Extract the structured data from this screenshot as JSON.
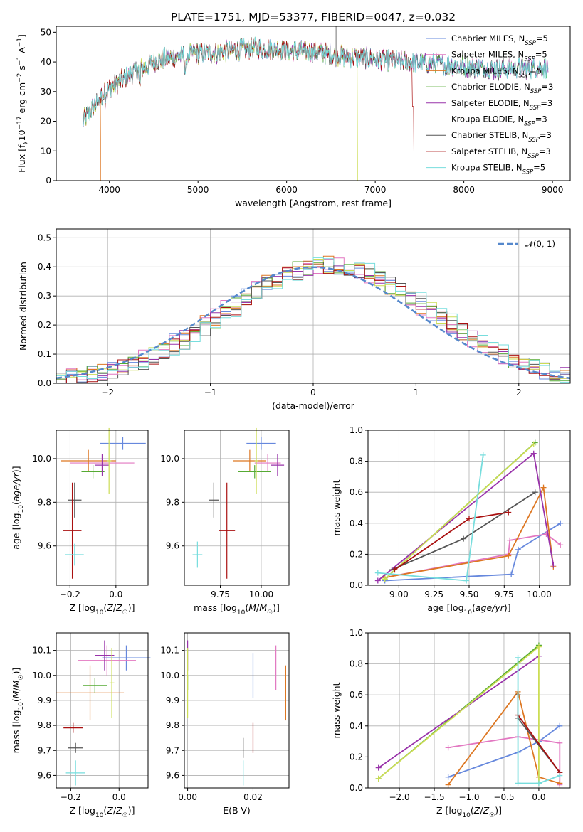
{
  "figure_title": "PLATE=1751, MJD=53377, FIBERID=0047, z=0.032",
  "colors": {
    "Chabrier MILES": "#6688dd",
    "Salpeter MILES": "#e277c1",
    "Kroupa MILES": "#dd7722",
    "Chabrier ELODIE": "#55aa33",
    "Salpeter ELODIE": "#9933aa",
    "Kroupa ELODIE": "#ccdd55",
    "Chabrier STELIB": "#555555",
    "Salpeter STELIB": "#aa1111",
    "Kroupa STELIB": "#77dddd"
  },
  "legend": {
    "spectrum": [
      {
        "model": "Chabrier MILES",
        "label": "Chabrier MILES, N",
        "sub": "SSP",
        "value": "=5"
      },
      {
        "model": "Salpeter MILES",
        "label": "Salpeter MILES, N",
        "sub": "SSP",
        "value": "=5"
      },
      {
        "model": "Kroupa MILES",
        "label": "Kroupa MILES, N",
        "sub": "SSP",
        "value": "=5"
      },
      {
        "model": "Chabrier ELODIE",
        "label": "Chabrier ELODIE, N",
        "sub": "SSP",
        "value": "=3"
      },
      {
        "model": "Salpeter ELODIE",
        "label": "Salpeter ELODIE, N",
        "sub": "SSP",
        "value": "=3"
      },
      {
        "model": "Kroupa ELODIE",
        "label": "Kroupa ELODIE, N",
        "sub": "SSP",
        "value": "=3"
      },
      {
        "model": "Chabrier STELIB",
        "label": "Chabrier STELIB, N",
        "sub": "SSP",
        "value": "=3"
      },
      {
        "model": "Salpeter STELIB",
        "label": "Salpeter STELIB, N",
        "sub": "SSP",
        "value": "=3"
      },
      {
        "model": "Kroupa STELIB",
        "label": "Kroupa STELIB, N",
        "sub": "SSP",
        "value": "=5"
      }
    ],
    "histogram": {
      "label": "𝒩(0, 1)",
      "color": "#5588cc"
    }
  },
  "chart_data": [
    {
      "panel": "spectrum",
      "type": "line",
      "xlabel": "wavelength [Angstrom, rest frame]",
      "ylabel": "Flux [f_λ 10^-17 erg cm^-2 s^-1 A^-1]",
      "xlim": [
        3400,
        9200
      ],
      "ylim": [
        0,
        52
      ],
      "xticks": [
        "4000",
        "5000",
        "6000",
        "7000",
        "8000",
        "9000"
      ],
      "yticks": [
        "0",
        "10",
        "20",
        "30",
        "40",
        "50"
      ],
      "grid": false,
      "legend_position": "upper right",
      "continuum_x": [
        3700,
        3800,
        3900,
        4000,
        4100,
        4200,
        4300,
        4400,
        4500,
        4600,
        4800,
        5000,
        5200,
        5400,
        5600,
        5800,
        6000,
        6200,
        6400,
        6600,
        6800,
        7000,
        7200,
        7400,
        7600,
        7800,
        8000,
        8200,
        8400,
        8600,
        8800,
        8950
      ],
      "continuum_y": [
        20,
        24,
        28,
        31,
        33,
        35,
        37,
        38,
        40,
        41,
        42,
        43,
        43,
        44,
        44.5,
        44.5,
        44,
        43.5,
        43,
        42,
        41.5,
        41,
        40.5,
        40,
        39.5,
        39,
        38.5,
        38,
        37.5,
        38,
        38,
        38
      ],
      "drops": [
        {
          "model": "Kroupa MILES",
          "x": 3900
        },
        {
          "model": "Kroupa ELODIE",
          "x": 6800
        },
        {
          "model": "Salpeter STELIB",
          "x": 7420
        }
      ],
      "annotation_spike_x": 6560
    },
    {
      "panel": "residual_histogram",
      "type": "line",
      "xlabel": "(data-model)/error",
      "ylabel": "Normed distribution",
      "xlim": [
        -2.5,
        2.5
      ],
      "ylim": [
        0,
        0.53
      ],
      "xticks": [
        "−2",
        "−1",
        "0",
        "1",
        "2"
      ],
      "yticks": [
        "0.0",
        "0.1",
        "0.2",
        "0.3",
        "0.4",
        "0.5"
      ],
      "grid": true,
      "legend_position": "upper right",
      "bin_width": 0.1,
      "series": [
        {
          "name": "𝒩(0, 1)",
          "mean": 0,
          "sigma": 1
        }
      ]
    },
    {
      "panel": "age_vs_Z",
      "type": "scatter",
      "xlabel": "Z [log10(Z/Z☉)]",
      "ylabel": "age [log10(age/yr)]",
      "xlim": [
        -0.26,
        0.14
      ],
      "ylim": [
        9.42,
        10.13
      ],
      "xticks": [
        "−0.2",
        "0.0"
      ],
      "yticks": [
        "9.6",
        "9.8",
        "10.0"
      ],
      "grid": true,
      "points": [
        {
          "model": "Chabrier MILES",
          "x": 0.03,
          "y": 10.07,
          "xerr": 0.1,
          "yerr": 0.03
        },
        {
          "model": "Salpeter MILES",
          "x": -0.06,
          "y": 9.98,
          "xerr": 0.14,
          "yerr": 0.04
        },
        {
          "model": "Kroupa MILES",
          "x": -0.12,
          "y": 9.99,
          "xerr": 0.12,
          "yerr": 0.05
        },
        {
          "model": "Chabrier ELODIE",
          "x": -0.1,
          "y": 9.94,
          "xerr": 0.05,
          "yerr": 0.03
        },
        {
          "model": "Salpeter ELODIE",
          "x": -0.06,
          "y": 9.97,
          "xerr": 0.03,
          "yerr": 0.05
        },
        {
          "model": "Kroupa ELODIE",
          "x": -0.03,
          "y": 9.99,
          "xerr": 0.01,
          "yerr": 0.15
        },
        {
          "model": "Chabrier STELIB",
          "x": -0.18,
          "y": 9.81,
          "xerr": 0.03,
          "yerr": 0.08
        },
        {
          "model": "Salpeter STELIB",
          "x": -0.19,
          "y": 9.67,
          "xerr": 0.04,
          "yerr": 0.22
        },
        {
          "model": "Kroupa STELIB",
          "x": -0.18,
          "y": 9.56,
          "xerr": 0.04,
          "yerr": 0.05
        }
      ]
    },
    {
      "panel": "age_vs_mass",
      "type": "scatter",
      "xlabel": "mass [log10(M/M☉)]",
      "ylabel": "",
      "xlim": [
        9.53,
        10.17
      ],
      "ylim": [
        9.42,
        10.13
      ],
      "xticks": [
        "9.75",
        "10.00"
      ],
      "yticks": [
        "9.6",
        "9.8",
        "10.0"
      ],
      "grid": true,
      "points": [
        {
          "model": "Chabrier MILES",
          "x": 10.0,
          "y": 10.07,
          "xerr": 0.09,
          "yerr": 0.03
        },
        {
          "model": "Salpeter MILES",
          "x": 10.04,
          "y": 9.98,
          "xerr": 0.08,
          "yerr": 0.04
        },
        {
          "model": "Kroupa MILES",
          "x": 9.93,
          "y": 9.99,
          "xerr": 0.1,
          "yerr": 0.05
        },
        {
          "model": "Chabrier ELODIE",
          "x": 9.96,
          "y": 9.94,
          "xerr": 0.1,
          "yerr": 0.03
        },
        {
          "model": "Salpeter ELODIE",
          "x": 10.1,
          "y": 9.97,
          "xerr": 0.04,
          "yerr": 0.05
        },
        {
          "model": "Kroupa ELODIE",
          "x": 9.97,
          "y": 9.99,
          "xerr": 0.01,
          "yerr": 0.15
        },
        {
          "model": "Chabrier STELIB",
          "x": 9.71,
          "y": 9.81,
          "xerr": 0.03,
          "yerr": 0.08
        },
        {
          "model": "Salpeter STELIB",
          "x": 9.79,
          "y": 9.67,
          "xerr": 0.05,
          "yerr": 0.22
        },
        {
          "model": "Kroupa STELIB",
          "x": 9.61,
          "y": 9.56,
          "xerr": 0.03,
          "yerr": 0.06
        }
      ]
    },
    {
      "panel": "mass_weight_vs_age",
      "type": "line",
      "xlabel": "age [log10(age/yr)]",
      "ylabel": "mass weight",
      "xlim": [
        8.78,
        10.22
      ],
      "ylim": [
        0,
        1.0
      ],
      "xticks": [
        "9.00",
        "9.25",
        "9.50",
        "9.75",
        "10.00"
      ],
      "yticks": [
        "0.0",
        "0.2",
        "0.4",
        "0.6",
        "0.8",
        "1.0"
      ],
      "grid": true,
      "series": [
        {
          "model": "Chabrier MILES",
          "x": [
            8.9,
            9.8,
            9.85,
            10.15
          ],
          "y": [
            0.03,
            0.07,
            0.23,
            0.4
          ]
        },
        {
          "model": "Salpeter MILES",
          "x": [
            8.9,
            9.78,
            9.79,
            10.05,
            10.15
          ],
          "y": [
            0.05,
            0.2,
            0.29,
            0.33,
            0.26
          ]
        },
        {
          "model": "Kroupa MILES",
          "x": [
            8.9,
            9.78,
            10.03,
            10.1
          ],
          "y": [
            0.05,
            0.19,
            0.63,
            0.12
          ]
        },
        {
          "model": "Chabrier ELODIE",
          "x": [
            8.9,
            9.97
          ],
          "y": [
            0.04,
            0.92
          ]
        },
        {
          "model": "Salpeter ELODIE",
          "x": [
            8.85,
            9.96,
            10.1
          ],
          "y": [
            0.03,
            0.85,
            0.13
          ]
        },
        {
          "model": "Kroupa ELODIE",
          "x": [
            8.9,
            9.96
          ],
          "y": [
            0.04,
            0.91
          ]
        },
        {
          "model": "Chabrier STELIB",
          "x": [
            8.95,
            9.46,
            9.97
          ],
          "y": [
            0.1,
            0.3,
            0.6
          ]
        },
        {
          "model": "Salpeter STELIB",
          "x": [
            8.97,
            9.5,
            9.78
          ],
          "y": [
            0.1,
            0.43,
            0.47
          ]
        },
        {
          "model": "Kroupa STELIB",
          "x": [
            8.85,
            9.48,
            9.6
          ],
          "y": [
            0.08,
            0.03,
            0.84
          ]
        }
      ]
    },
    {
      "panel": "mass_vs_Z",
      "type": "scatter",
      "xlabel": "Z [log10(Z/Z☉)]",
      "ylabel": "mass [log10(M/M☉)]",
      "xlim": [
        -0.26,
        0.12
      ],
      "ylim": [
        9.55,
        10.17
      ],
      "xticks": [
        "−0.2",
        "0.0"
      ],
      "yticks": [
        "9.6",
        "9.7",
        "9.8",
        "9.9",
        "10.0",
        "10.1"
      ],
      "grid": true,
      "points": [
        {
          "model": "Chabrier MILES",
          "x": 0.03,
          "y": 10.07,
          "xerr": 0.1,
          "yerr": 0.05
        },
        {
          "model": "Salpeter MILES",
          "x": -0.05,
          "y": 10.06,
          "xerr": 0.12,
          "yerr": 0.06
        },
        {
          "model": "Kroupa MILES",
          "x": -0.12,
          "y": 9.93,
          "xerr": 0.14,
          "yerr": 0.11
        },
        {
          "model": "Chabrier ELODIE",
          "x": -0.1,
          "y": 9.96,
          "xerr": 0.05,
          "yerr": 0.03
        },
        {
          "model": "Salpeter ELODIE",
          "x": -0.06,
          "y": 10.08,
          "xerr": 0.04,
          "yerr": 0.06
        },
        {
          "model": "Kroupa ELODIE",
          "x": -0.03,
          "y": 9.97,
          "xerr": 0.01,
          "yerr": 0.14
        },
        {
          "model": "Chabrier STELIB",
          "x": -0.18,
          "y": 9.71,
          "xerr": 0.03,
          "yerr": 0.02
        },
        {
          "model": "Salpeter STELIB",
          "x": -0.19,
          "y": 9.79,
          "xerr": 0.04,
          "yerr": 0.02
        },
        {
          "model": "Kroupa STELIB",
          "x": -0.18,
          "y": 9.61,
          "xerr": 0.04,
          "yerr": 0.05
        }
      ]
    },
    {
      "panel": "mass_vs_EBV",
      "type": "scatter",
      "xlabel": "E(B-V)",
      "ylabel": "",
      "xlim": [
        -0.001,
        0.031
      ],
      "ylim": [
        9.55,
        10.17
      ],
      "xticks": [
        "0.00",
        "0.02"
      ],
      "yticks": [
        "9.6",
        "9.7",
        "9.8",
        "9.9",
        "10.0",
        "10.1"
      ],
      "grid": true,
      "points": [
        {
          "model": "Chabrier MILES",
          "x": 0.02,
          "y": 10.0,
          "yerr": 0.09
        },
        {
          "model": "Salpeter MILES",
          "x": 0.027,
          "y": 10.03,
          "yerr": 0.09
        },
        {
          "model": "Kroupa MILES",
          "x": 0.03,
          "y": 9.93,
          "yerr": 0.11
        },
        {
          "model": "Chabrier ELODIE",
          "x": 0.0,
          "y": 9.97,
          "yerr": 0.03
        },
        {
          "model": "Salpeter ELODIE",
          "x": 0.0,
          "y": 10.08,
          "yerr": 0.06
        },
        {
          "model": "Kroupa ELODIE",
          "x": 0.0,
          "y": 9.97,
          "yerr": 0.14
        },
        {
          "model": "Chabrier STELIB",
          "x": 0.017,
          "y": 9.71,
          "yerr": 0.04
        },
        {
          "model": "Salpeter STELIB",
          "x": 0.02,
          "y": 9.75,
          "yerr": 0.06
        },
        {
          "model": "Kroupa STELIB",
          "x": 0.017,
          "y": 9.61,
          "yerr": 0.05
        }
      ]
    },
    {
      "panel": "mass_weight_vs_Z",
      "type": "line",
      "xlabel": "Z [log10(Z/Z☉)]",
      "ylabel": "mass weight",
      "xlim": [
        -2.45,
        0.45
      ],
      "ylim": [
        0,
        1.0
      ],
      "xticks": [
        "−2.0",
        "−1.5",
        "−1.0",
        "−0.5",
        "0.0"
      ],
      "yticks": [
        "0.0",
        "0.2",
        "0.4",
        "0.6",
        "0.8",
        "1.0"
      ],
      "grid": true,
      "series": [
        {
          "model": "Chabrier MILES",
          "x": [
            -1.3,
            -0.3,
            0.0,
            0.3
          ],
          "y": [
            0.07,
            0.23,
            0.3,
            0.4
          ]
        },
        {
          "model": "Salpeter MILES",
          "x": [
            -1.3,
            -0.3,
            0.3,
            0.3
          ],
          "y": [
            0.26,
            0.33,
            0.29,
            0.02
          ]
        },
        {
          "model": "Kroupa MILES",
          "x": [
            -1.3,
            -0.3,
            0.0,
            0.3
          ],
          "y": [
            0.02,
            0.62,
            0.07,
            0.03
          ]
        },
        {
          "model": "Chabrier ELODIE",
          "x": [
            -2.3,
            0.0
          ],
          "y": [
            0.06,
            0.92
          ]
        },
        {
          "model": "Salpeter ELODIE",
          "x": [
            -2.3,
            0.0
          ],
          "y": [
            0.13,
            0.85
          ]
        },
        {
          "model": "Kroupa ELODIE",
          "x": [
            -2.3,
            0.0,
            0.0
          ],
          "y": [
            0.06,
            0.91,
            0.03
          ]
        },
        {
          "model": "Chabrier STELIB",
          "x": [
            -0.3,
            -0.3,
            0.3
          ],
          "y": [
            0.6,
            0.45,
            0.1
          ]
        },
        {
          "model": "Salpeter STELIB",
          "x": [
            -0.3,
            0.3
          ],
          "y": [
            0.47,
            0.1
          ]
        },
        {
          "model": "Kroupa STELIB",
          "x": [
            -0.3,
            -0.3,
            0.0,
            0.3
          ],
          "y": [
            0.84,
            0.03,
            0.03,
            0.08
          ]
        }
      ]
    }
  ]
}
